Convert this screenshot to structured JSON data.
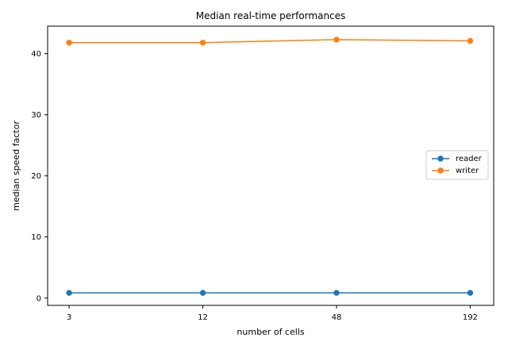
{
  "chart_data": {
    "type": "line",
    "title": "Median real-time performances",
    "xlabel": "number of cells",
    "ylabel": "median speed factor",
    "x": [
      3,
      12,
      48,
      192
    ],
    "x_scale": "log",
    "xlim": [
      2.4,
      245
    ],
    "ylim": [
      -1.2,
      44.5
    ],
    "y_ticks": [
      0,
      10,
      20,
      30,
      40
    ],
    "grid": false,
    "legend_position": "center-right",
    "series": [
      {
        "name": "reader",
        "values": [
          0.85,
          0.85,
          0.85,
          0.85
        ],
        "color": "#1f77b4",
        "marker": "circle"
      },
      {
        "name": "writer",
        "values": [
          41.8,
          41.8,
          42.3,
          42.1
        ],
        "color": "#ff7f0e",
        "marker": "circle"
      }
    ]
  }
}
